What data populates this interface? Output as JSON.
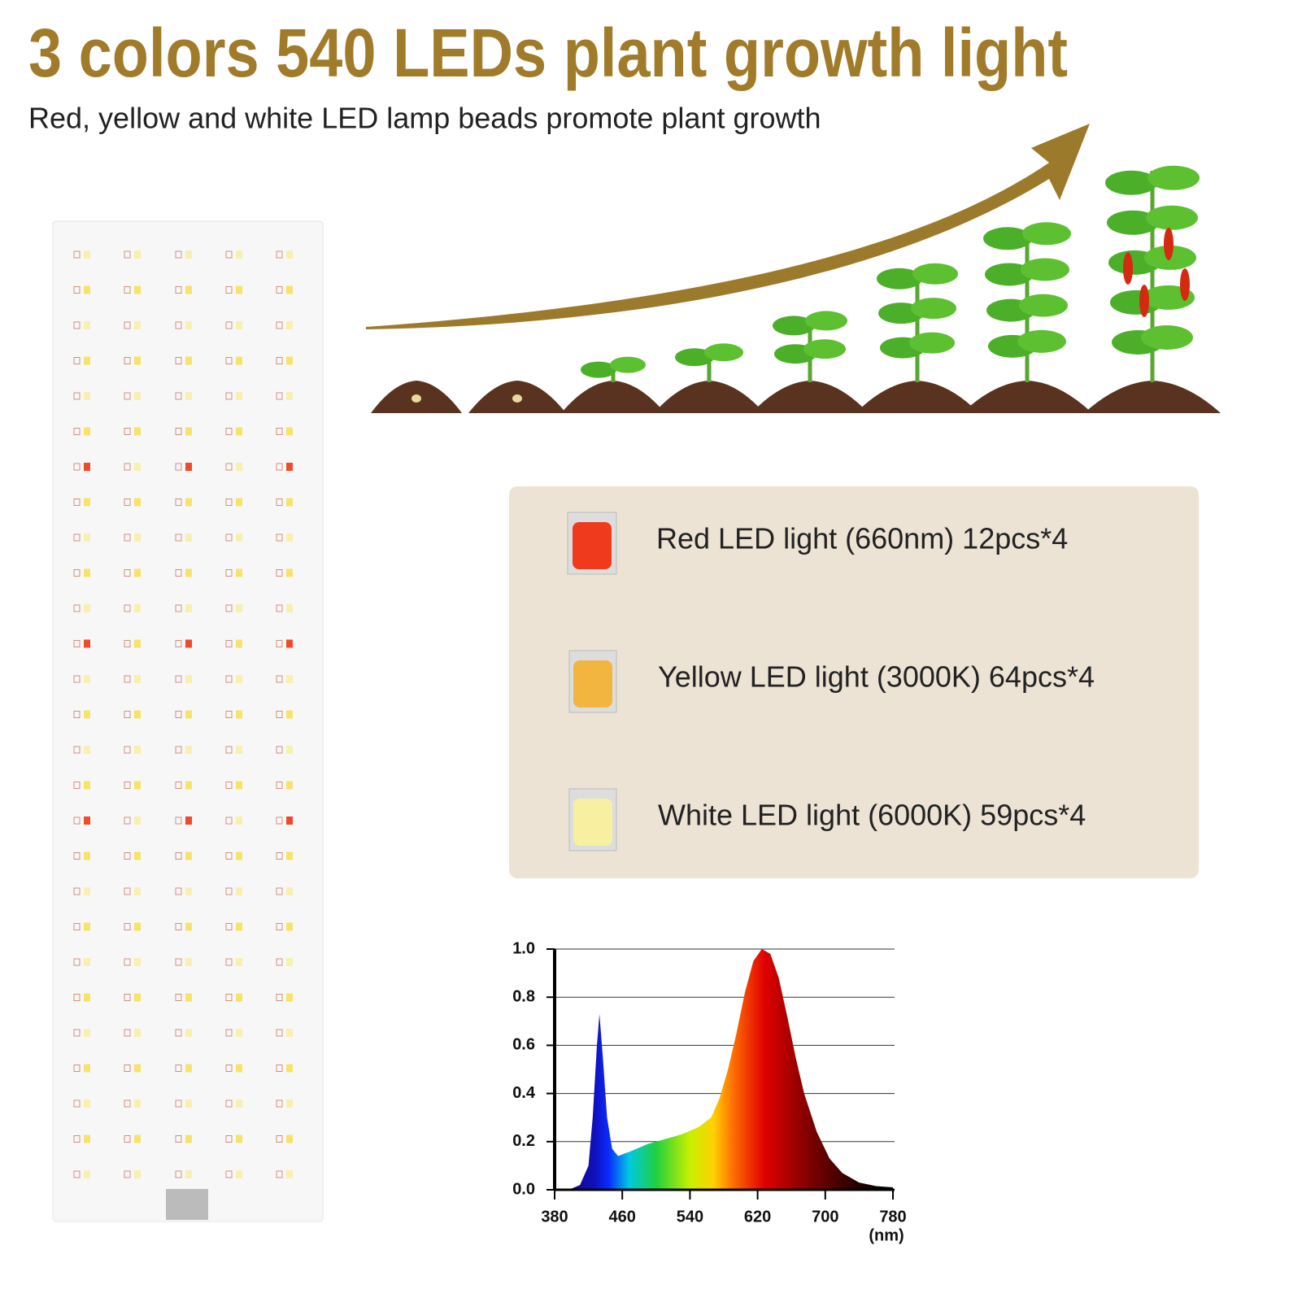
{
  "header": {
    "title": "3 colors 540 LEDs plant growth light",
    "subtitle": "Red, yellow and white LED lamp beads promote plant growth"
  },
  "leds": [
    {
      "label": "Red LED light (660nm) 12pcs*4"
    },
    {
      "label": "Yellow LED light (3000K) 64pcs*4"
    },
    {
      "label": "White LED light (6000K) 59pcs*4"
    }
  ],
  "chart_data": {
    "type": "area",
    "xlabel": "(nm)",
    "x": [
      380,
      400,
      410,
      420,
      425,
      430,
      433,
      437,
      442,
      448,
      455,
      470,
      490,
      510,
      530,
      550,
      565,
      575,
      585,
      595,
      605,
      615,
      625,
      635,
      645,
      655,
      665,
      675,
      690,
      705,
      720,
      740,
      760,
      780
    ],
    "values": [
      0,
      0.005,
      0.02,
      0.1,
      0.3,
      0.6,
      0.73,
      0.55,
      0.3,
      0.17,
      0.14,
      0.16,
      0.19,
      0.21,
      0.23,
      0.26,
      0.3,
      0.38,
      0.5,
      0.65,
      0.82,
      0.95,
      1.0,
      0.98,
      0.88,
      0.72,
      0.55,
      0.4,
      0.24,
      0.13,
      0.07,
      0.03,
      0.015,
      0.01
    ],
    "xlim": [
      380,
      780
    ],
    "ylim": [
      0,
      1
    ],
    "xticks": [
      380,
      460,
      540,
      620,
      700,
      780
    ],
    "yticks": [
      {
        "value": 0,
        "label": "0.0"
      },
      {
        "value": 0.2,
        "label": "0.2"
      },
      {
        "value": 0.4,
        "label": "0.4"
      },
      {
        "value": 0.6,
        "label": "0.6"
      },
      {
        "value": 0.8,
        "label": "0.8"
      },
      {
        "value": 1,
        "label": "1.0"
      }
    ],
    "grid": true
  }
}
